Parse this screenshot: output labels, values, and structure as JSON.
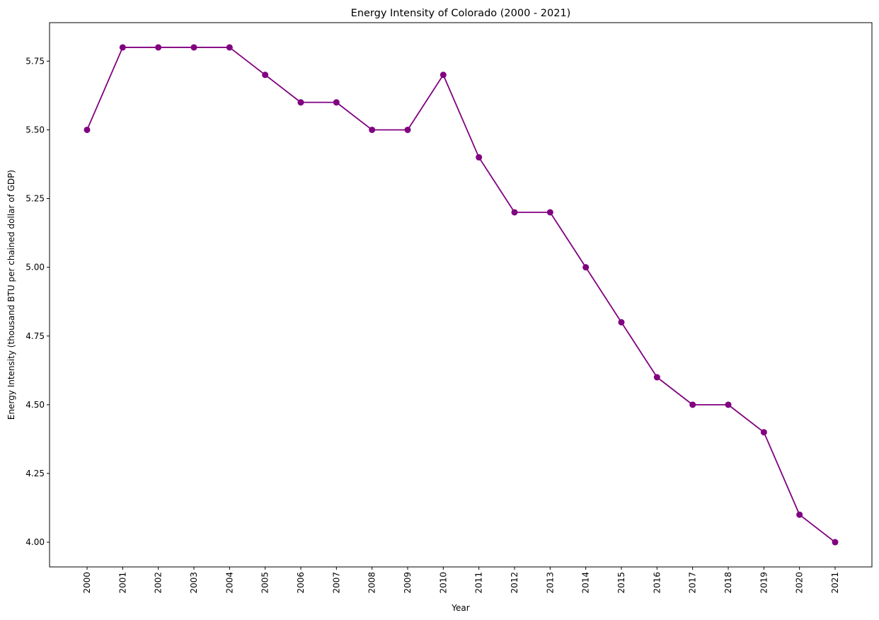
{
  "chart_data": {
    "type": "line",
    "title": "Energy Intensity of Colorado (2000 - 2021)",
    "xlabel": "Year",
    "ylabel": "Energy Intensity (thousand BTU per chained dollar of GDP)",
    "x": [
      "2000",
      "2001",
      "2002",
      "2003",
      "2004",
      "2005",
      "2006",
      "2007",
      "2008",
      "2009",
      "2010",
      "2011",
      "2012",
      "2013",
      "2014",
      "2015",
      "2016",
      "2017",
      "2018",
      "2019",
      "2020",
      "2021"
    ],
    "series": [
      {
        "values": [
          5.5,
          5.8,
          5.8,
          5.8,
          5.8,
          5.7,
          5.6,
          5.6,
          5.5,
          5.5,
          5.7,
          5.4,
          5.2,
          5.2,
          5.0,
          4.8,
          4.6,
          4.5,
          4.5,
          4.4,
          4.1,
          4.0
        ],
        "color": "#800080",
        "marker": "circle"
      }
    ],
    "ylim": [
      3.91,
      5.89
    ],
    "yticks": [
      4.0,
      4.25,
      4.5,
      4.75,
      5.0,
      5.25,
      5.5,
      5.75
    ],
    "ytick_labels": [
      "4.00",
      "4.25",
      "4.50",
      "4.75",
      "5.00",
      "5.25",
      "5.50",
      "5.75"
    ],
    "grid": false,
    "xtick_rotation": "vertical"
  }
}
